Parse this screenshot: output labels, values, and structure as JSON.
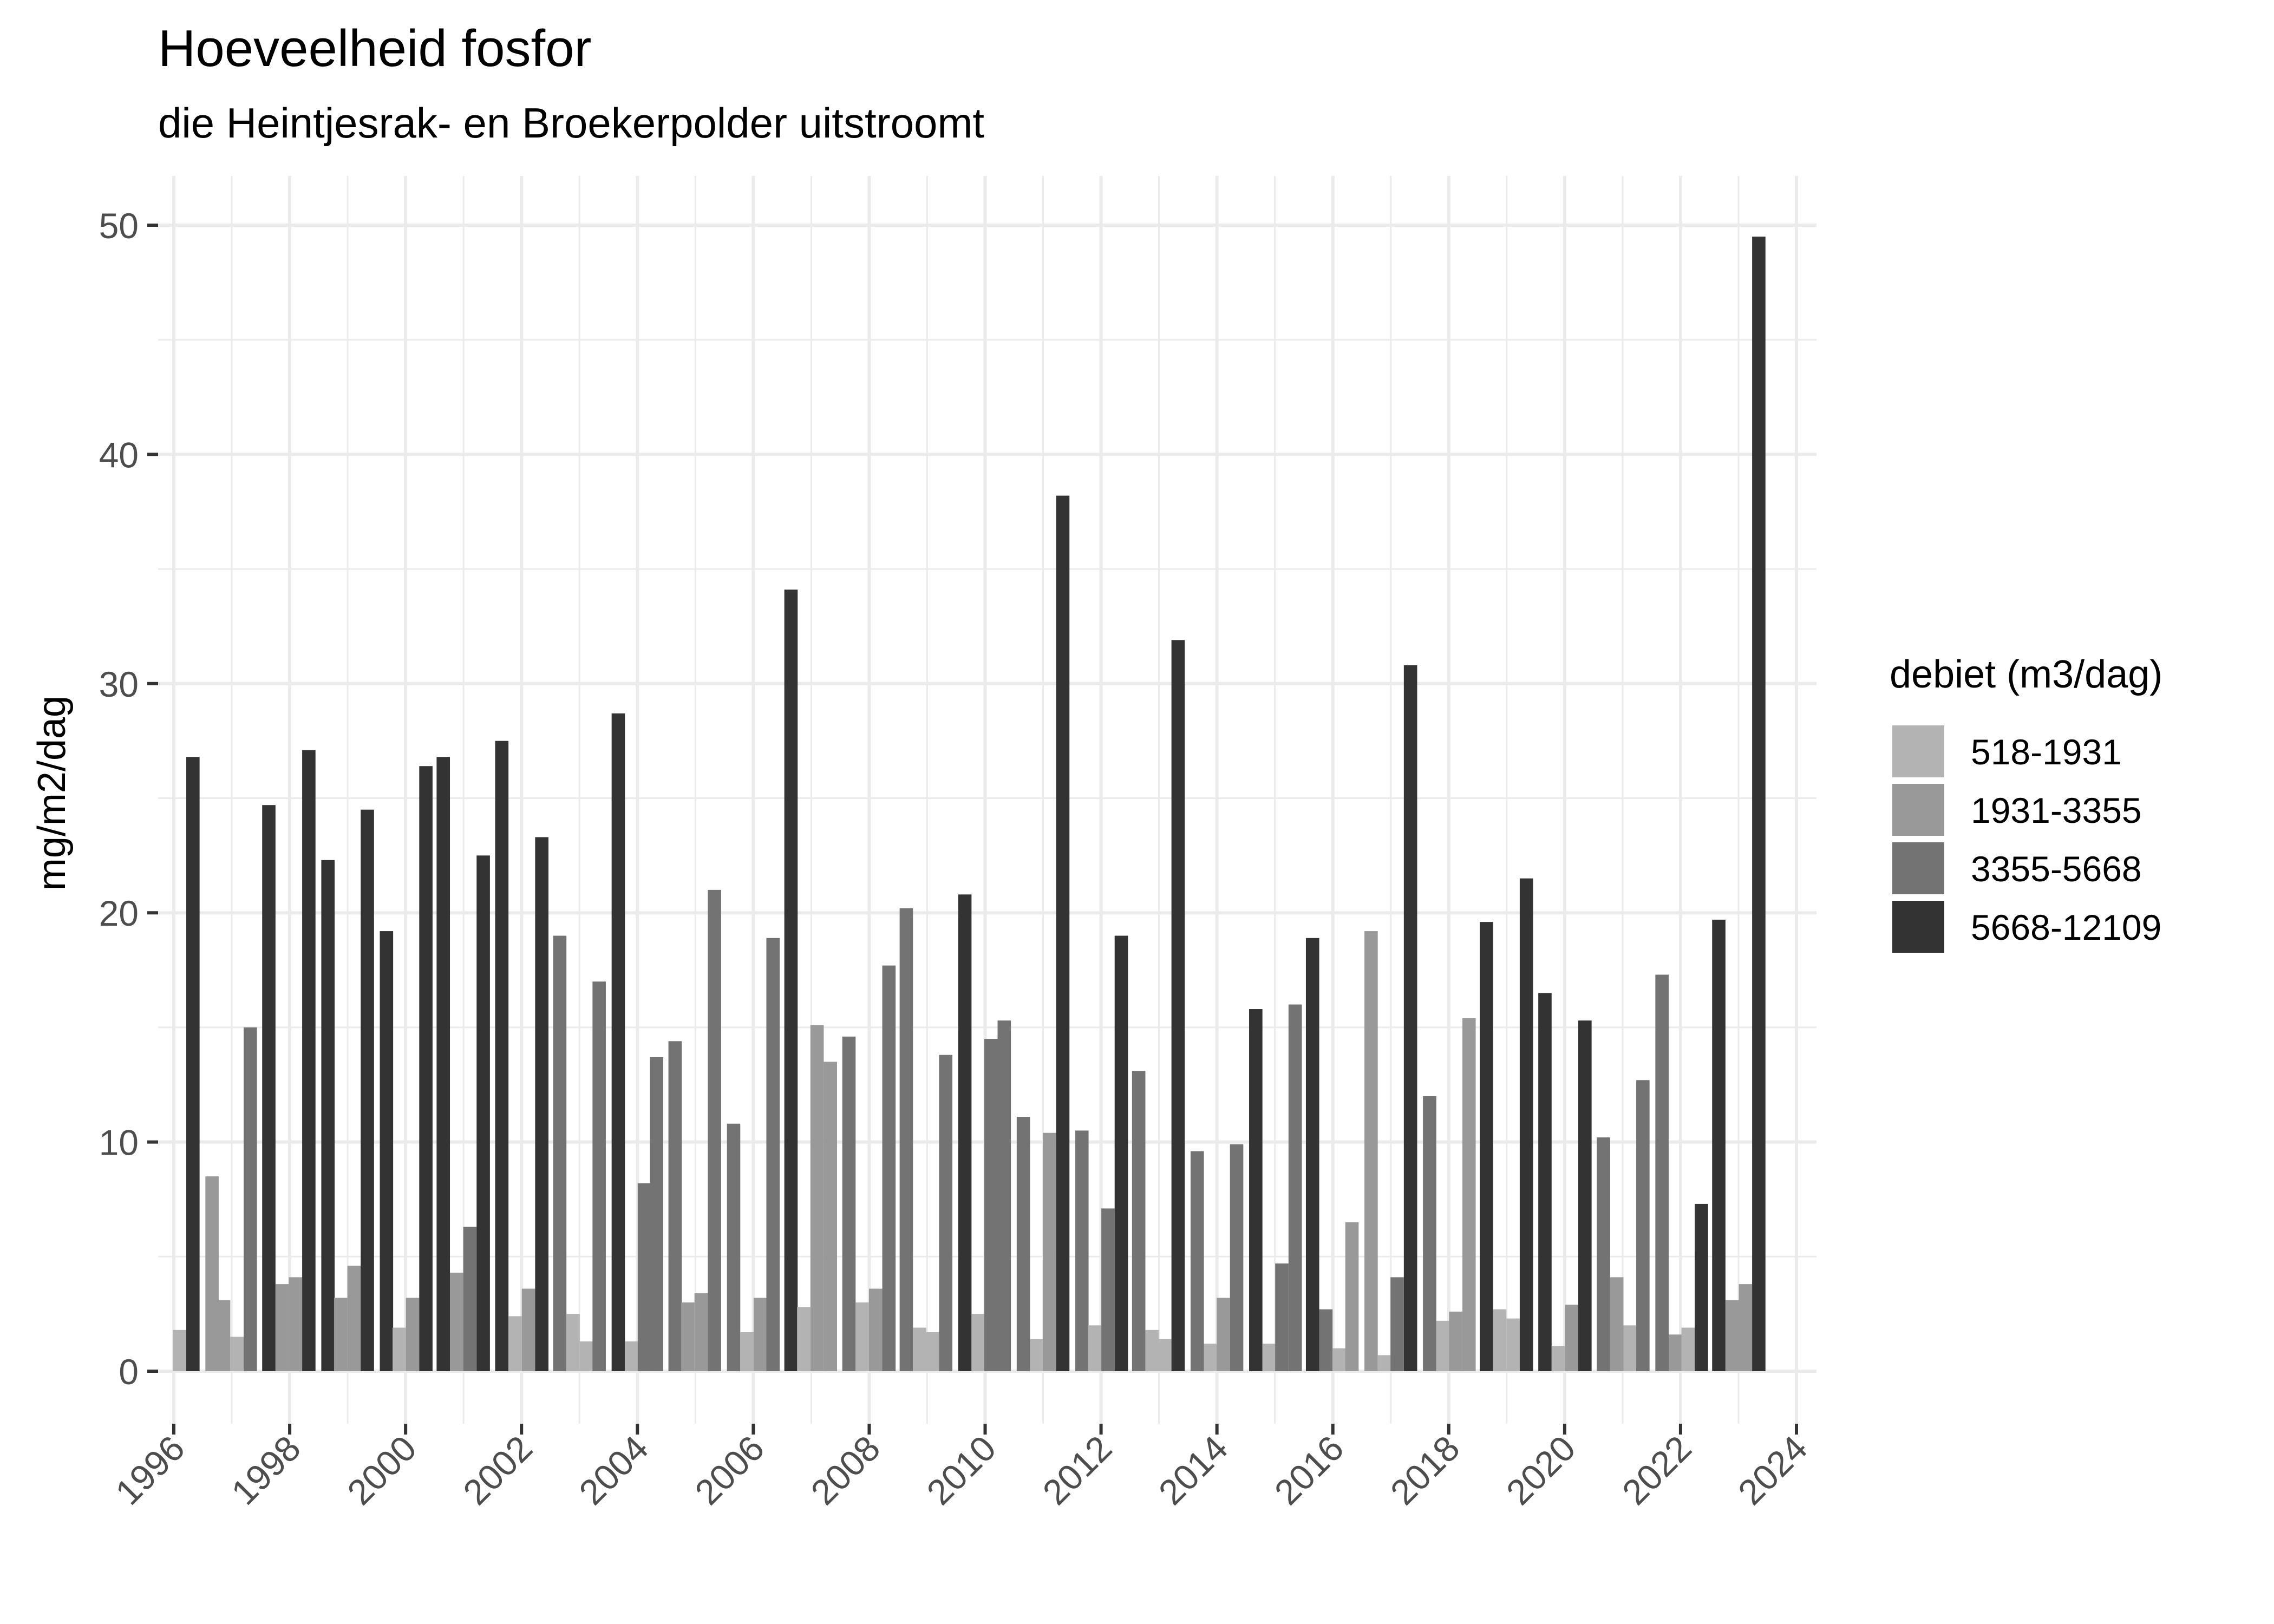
{
  "title": "Hoeveelheid fosfor",
  "subtitle": "die Heintjesrak- en Broekerpolder uitstroomt",
  "legend": {
    "title": "debiet (m3/dag)",
    "items": [
      {
        "label": "518-1931",
        "color": "#b3b3b3"
      },
      {
        "label": "1931-3355",
        "color": "#999999"
      },
      {
        "label": "3355-5668",
        "color": "#737373"
      },
      {
        "label": "5668-12109",
        "color": "#333333"
      }
    ]
  },
  "chart_data": {
    "type": "bar",
    "title": "Hoeveelheid fosfor",
    "subtitle": "die Heintjesrak- en Broekerpolder uitstroomt",
    "xlabel": "",
    "ylabel": "mg/m2/dag",
    "xlim": [
      1996,
      2024
    ],
    "ylim": [
      0,
      50
    ],
    "x_ticks": [
      "1996",
      "1998",
      "2000",
      "2002",
      "2004",
      "2006",
      "2008",
      "2010",
      "2012",
      "2014",
      "2016",
      "2018",
      "2020",
      "2022",
      "2024"
    ],
    "y_ticks": [
      "0",
      "10",
      "20",
      "30",
      "40",
      "50"
    ],
    "grid": true,
    "legend_position": "right",
    "legend_title": "debiet (m3/dag)",
    "series_names": [
      "518-1931",
      "1931-3355",
      "3355-5668",
      "5668-12109"
    ],
    "bar_width_years": 0.23,
    "bars": [
      {
        "x": 1996.1,
        "value": 1.8,
        "class": 0
      },
      {
        "x": 1996.33,
        "value": 26.8,
        "class": 3
      },
      {
        "x": 1996.66,
        "value": 8.5,
        "class": 1
      },
      {
        "x": 1996.86,
        "value": 3.1,
        "class": 1
      },
      {
        "x": 1997.09,
        "value": 1.5,
        "class": 0
      },
      {
        "x": 1997.32,
        "value": 15.0,
        "class": 2
      },
      {
        "x": 1997.64,
        "value": 24.7,
        "class": 3
      },
      {
        "x": 1997.87,
        "value": 3.8,
        "class": 1
      },
      {
        "x": 1998.1,
        "value": 4.1,
        "class": 1
      },
      {
        "x": 1998.33,
        "value": 27.1,
        "class": 3
      },
      {
        "x": 1998.66,
        "value": 22.3,
        "class": 3
      },
      {
        "x": 1998.88,
        "value": 3.2,
        "class": 1
      },
      {
        "x": 1999.11,
        "value": 4.6,
        "class": 1
      },
      {
        "x": 1999.34,
        "value": 24.5,
        "class": 3
      },
      {
        "x": 1999.67,
        "value": 19.2,
        "class": 3
      },
      {
        "x": 1999.89,
        "value": 1.9,
        "class": 0
      },
      {
        "x": 2000.12,
        "value": 3.2,
        "class": 1
      },
      {
        "x": 2000.35,
        "value": 26.4,
        "class": 3
      },
      {
        "x": 2000.65,
        "value": 26.8,
        "class": 3
      },
      {
        "x": 2000.88,
        "value": 4.3,
        "class": 1
      },
      {
        "x": 2001.11,
        "value": 6.3,
        "class": 2
      },
      {
        "x": 2001.34,
        "value": 22.5,
        "class": 3
      },
      {
        "x": 2001.66,
        "value": 27.5,
        "class": 3
      },
      {
        "x": 2001.89,
        "value": 2.4,
        "class": 0
      },
      {
        "x": 2002.12,
        "value": 3.6,
        "class": 1
      },
      {
        "x": 2002.35,
        "value": 23.3,
        "class": 3
      },
      {
        "x": 2002.66,
        "value": 19.0,
        "class": 2
      },
      {
        "x": 2002.89,
        "value": 2.5,
        "class": 0
      },
      {
        "x": 2003.12,
        "value": 1.3,
        "class": 0
      },
      {
        "x": 2003.34,
        "value": 17.0,
        "class": 2
      },
      {
        "x": 2003.67,
        "value": 28.7,
        "class": 3
      },
      {
        "x": 2003.9,
        "value": 1.3,
        "class": 0
      },
      {
        "x": 2004.12,
        "value": 8.2,
        "class": 2
      },
      {
        "x": 2004.33,
        "value": 13.7,
        "class": 2
      },
      {
        "x": 2004.65,
        "value": 14.4,
        "class": 2
      },
      {
        "x": 2004.87,
        "value": 3.0,
        "class": 1
      },
      {
        "x": 2005.1,
        "value": 3.4,
        "class": 1
      },
      {
        "x": 2005.33,
        "value": 21.0,
        "class": 2
      },
      {
        "x": 2005.66,
        "value": 10.8,
        "class": 2
      },
      {
        "x": 2005.89,
        "value": 1.7,
        "class": 0
      },
      {
        "x": 2006.12,
        "value": 3.2,
        "class": 1
      },
      {
        "x": 2006.34,
        "value": 18.9,
        "class": 2
      },
      {
        "x": 2006.65,
        "value": 34.1,
        "class": 3
      },
      {
        "x": 2006.87,
        "value": 2.8,
        "class": 0
      },
      {
        "x": 2007.1,
        "value": 15.1,
        "class": 1
      },
      {
        "x": 2007.33,
        "value": 13.5,
        "class": 1
      },
      {
        "x": 2007.65,
        "value": 14.6,
        "class": 2
      },
      {
        "x": 2007.88,
        "value": 3.0,
        "class": 0
      },
      {
        "x": 2008.11,
        "value": 3.6,
        "class": 1
      },
      {
        "x": 2008.34,
        "value": 17.7,
        "class": 2
      },
      {
        "x": 2008.64,
        "value": 20.2,
        "class": 2
      },
      {
        "x": 2008.87,
        "value": 1.9,
        "class": 0
      },
      {
        "x": 2009.09,
        "value": 1.7,
        "class": 0
      },
      {
        "x": 2009.32,
        "value": 13.8,
        "class": 2
      },
      {
        "x": 2009.65,
        "value": 20.8,
        "class": 3
      },
      {
        "x": 2009.88,
        "value": 2.5,
        "class": 0
      },
      {
        "x": 2010.1,
        "value": 14.5,
        "class": 2
      },
      {
        "x": 2010.33,
        "value": 15.3,
        "class": 2
      },
      {
        "x": 2010.66,
        "value": 11.1,
        "class": 2
      },
      {
        "x": 2010.89,
        "value": 1.4,
        "class": 0
      },
      {
        "x": 2011.11,
        "value": 10.4,
        "class": 1
      },
      {
        "x": 2011.34,
        "value": 38.2,
        "class": 3
      },
      {
        "x": 2011.67,
        "value": 10.5,
        "class": 2
      },
      {
        "x": 2011.89,
        "value": 2.0,
        "class": 0
      },
      {
        "x": 2012.12,
        "value": 7.1,
        "class": 2
      },
      {
        "x": 2012.35,
        "value": 19.0,
        "class": 3
      },
      {
        "x": 2012.65,
        "value": 13.1,
        "class": 2
      },
      {
        "x": 2012.88,
        "value": 1.8,
        "class": 0
      },
      {
        "x": 2013.1,
        "value": 1.4,
        "class": 0
      },
      {
        "x": 2013.33,
        "value": 31.9,
        "class": 3
      },
      {
        "x": 2013.66,
        "value": 9.6,
        "class": 2
      },
      {
        "x": 2013.89,
        "value": 1.2,
        "class": 0
      },
      {
        "x": 2014.11,
        "value": 3.2,
        "class": 1
      },
      {
        "x": 2014.34,
        "value": 9.9,
        "class": 2
      },
      {
        "x": 2014.67,
        "value": 15.8,
        "class": 3
      },
      {
        "x": 2014.9,
        "value": 1.2,
        "class": 0
      },
      {
        "x": 2015.12,
        "value": 4.7,
        "class": 2
      },
      {
        "x": 2015.35,
        "value": 16.0,
        "class": 2
      },
      {
        "x": 2015.65,
        "value": 18.9,
        "class": 3
      },
      {
        "x": 2015.88,
        "value": 2.7,
        "class": 2
      },
      {
        "x": 2016.11,
        "value": 1.0,
        "class": 0
      },
      {
        "x": 2016.33,
        "value": 6.5,
        "class": 1
      },
      {
        "x": 2016.66,
        "value": 19.2,
        "class": 1
      },
      {
        "x": 2016.89,
        "value": 0.7,
        "class": 0
      },
      {
        "x": 2017.11,
        "value": 4.1,
        "class": 2
      },
      {
        "x": 2017.34,
        "value": 30.8,
        "class": 3
      },
      {
        "x": 2017.67,
        "value": 12.0,
        "class": 2
      },
      {
        "x": 2017.9,
        "value": 2.2,
        "class": 0
      },
      {
        "x": 2018.12,
        "value": 2.6,
        "class": 1
      },
      {
        "x": 2018.35,
        "value": 15.4,
        "class": 1
      },
      {
        "x": 2018.65,
        "value": 19.6,
        "class": 3
      },
      {
        "x": 2018.88,
        "value": 2.7,
        "class": 0
      },
      {
        "x": 2019.11,
        "value": 2.3,
        "class": 0
      },
      {
        "x": 2019.34,
        "value": 21.5,
        "class": 3
      },
      {
        "x": 2019.66,
        "value": 16.5,
        "class": 3
      },
      {
        "x": 2019.89,
        "value": 1.1,
        "class": 0
      },
      {
        "x": 2020.12,
        "value": 2.9,
        "class": 1
      },
      {
        "x": 2020.35,
        "value": 15.3,
        "class": 3
      },
      {
        "x": 2020.67,
        "value": 10.2,
        "class": 2
      },
      {
        "x": 2020.9,
        "value": 4.1,
        "class": 1
      },
      {
        "x": 2021.13,
        "value": 2.0,
        "class": 0
      },
      {
        "x": 2021.35,
        "value": 12.7,
        "class": 2
      },
      {
        "x": 2021.68,
        "value": 17.3,
        "class": 2
      },
      {
        "x": 2021.91,
        "value": 1.6,
        "class": 1
      },
      {
        "x": 2022.13,
        "value": 1.9,
        "class": 0
      },
      {
        "x": 2022.36,
        "value": 7.3,
        "class": 3
      },
      {
        "x": 2022.66,
        "value": 19.7,
        "class": 3
      },
      {
        "x": 2022.89,
        "value": 3.1,
        "class": 1
      },
      {
        "x": 2023.12,
        "value": 3.8,
        "class": 1
      },
      {
        "x": 2023.35,
        "value": 49.5,
        "class": 3
      }
    ]
  }
}
